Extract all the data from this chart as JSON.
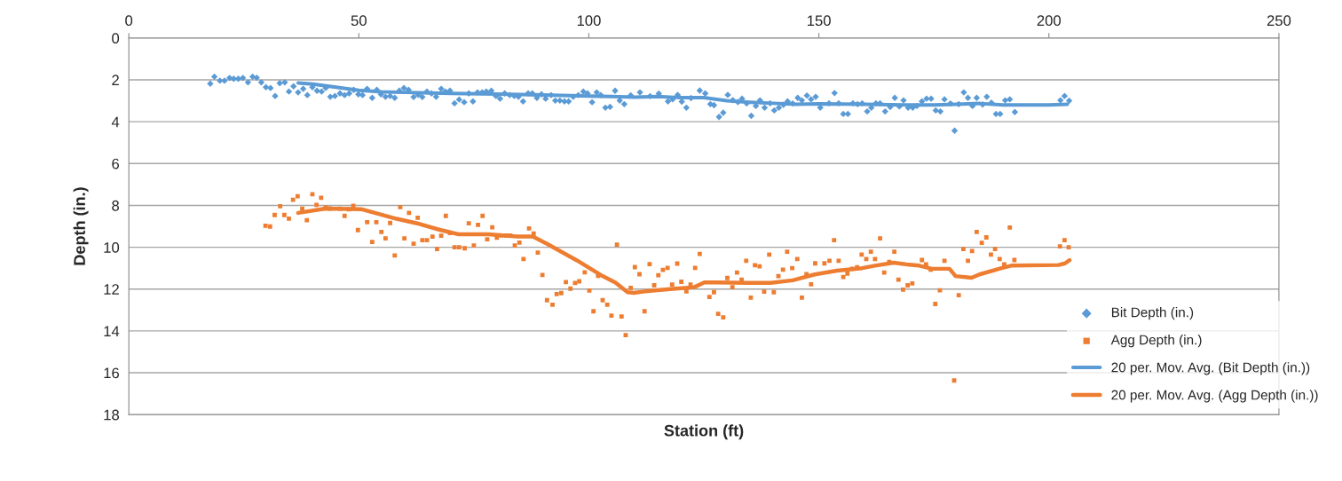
{
  "chart_data": {
    "type": "scatter",
    "xlabel": "Station (ft)",
    "ylabel": "Depth (in.)",
    "xlim": [
      0,
      250
    ],
    "xticks": [
      0,
      50,
      100,
      150,
      200,
      250
    ],
    "ylim": [
      18,
      0
    ],
    "yticks": [
      0,
      2,
      4,
      6,
      8,
      10,
      12,
      14,
      16,
      18
    ],
    "grid": "y",
    "legend": "bottom right",
    "series": [
      {
        "name": "Bit Depth (in.)",
        "color": "#5b9bd5",
        "marker": "diamond",
        "x": [
          17.7,
          18.6,
          19.8,
          20.8,
          21.9,
          22.8,
          23.8,
          24.8,
          25.9,
          26.9,
          27.8,
          28.8,
          29.8,
          30.8,
          31.8,
          32.8,
          33.9,
          34.8,
          35.8,
          36.8,
          37.9,
          38.8,
          39.9,
          40.9,
          41.9,
          42.8,
          43.8,
          44.8,
          45.9,
          46.9,
          47.9,
          48.9,
          49.9,
          50.8,
          51.8,
          52.9,
          53.9,
          54.8,
          55.8,
          56.8,
          57.8,
          58.8,
          59.8,
          60.8,
          61.9,
          62.9,
          63.8,
          64.8,
          65.8,
          66.8,
          67.9,
          68.8,
          69.8,
          70.8,
          71.8,
          72.9,
          73.9,
          74.8,
          75.8,
          76.8,
          77.7,
          78.8,
          79.8,
          80.7,
          81.7,
          82.8,
          83.8,
          84.7,
          85.7,
          86.8,
          87.7,
          88.7,
          89.7,
          90.6,
          91.8,
          92.7,
          93.7,
          94.7,
          95.6,
          96.6,
          97.7,
          98.8,
          99.7,
          100.7,
          101.7,
          102.6,
          103.6,
          104.6,
          105.7,
          106.7,
          107.7,
          109.1,
          111.1,
          113.3,
          115.2,
          117.2,
          118.2,
          119.3,
          120.2,
          121.2,
          122.2,
          124.1,
          125.3,
          126.4,
          127.2,
          128.3,
          129.2,
          130.2,
          131.3,
          132.4,
          133.3,
          134.3,
          135.3,
          136.3,
          137.2,
          138.2,
          139.4,
          140.3,
          141.3,
          142.3,
          143.2,
          144.3,
          145.4,
          146.3,
          147.4,
          148.3,
          149.3,
          150.3,
          152.2,
          153.4,
          154.3,
          155.3,
          156.3,
          157.4,
          158.4,
          159.4,
          160.5,
          161.4,
          162.4,
          163.3,
          164.4,
          165.5,
          166.5,
          167.5,
          168.4,
          169.4,
          170.4,
          171.3,
          172.4,
          173.4,
          174.4,
          175.4,
          176.4,
          177.3,
          178.6,
          179.5,
          180.4,
          181.5,
          182.4,
          183.4,
          184.3,
          185.6,
          186.5,
          187.5,
          188.5,
          189.4,
          190.5,
          191.5,
          192.6,
          202.5,
          203.4,
          204.4
        ],
        "values": [
          2.18,
          1.85,
          2.04,
          2.04,
          1.91,
          1.95,
          1.95,
          1.91,
          2.12,
          1.85,
          1.9,
          2.12,
          2.35,
          2.39,
          2.77,
          2.16,
          2.12,
          2.56,
          2.31,
          2.6,
          2.43,
          2.73,
          2.35,
          2.52,
          2.56,
          2.39,
          2.81,
          2.77,
          2.65,
          2.73,
          2.65,
          2.48,
          2.69,
          2.73,
          2.43,
          2.86,
          2.48,
          2.69,
          2.81,
          2.77,
          2.86,
          2.52,
          2.39,
          2.48,
          2.82,
          2.71,
          2.82,
          2.56,
          2.65,
          2.81,
          2.43,
          2.56,
          2.52,
          3.12,
          2.94,
          3.07,
          2.65,
          3.03,
          2.6,
          2.6,
          2.56,
          2.52,
          2.77,
          2.9,
          2.65,
          2.73,
          2.77,
          2.81,
          3.03,
          2.65,
          2.65,
          2.86,
          2.69,
          2.9,
          2.73,
          2.99,
          2.99,
          3.03,
          3.03,
          2.81,
          2.73,
          2.56,
          2.65,
          3.07,
          2.6,
          2.73,
          3.33,
          3.29,
          2.52,
          2.99,
          3.16,
          2.74,
          2.6,
          2.78,
          2.66,
          3.03,
          2.93,
          2.72,
          3.04,
          3.33,
          2.87,
          2.51,
          2.65,
          3.16,
          3.21,
          3.77,
          3.57,
          2.72,
          2.97,
          3.06,
          2.9,
          3.13,
          3.72,
          3.25,
          2.98,
          3.33,
          3.12,
          3.46,
          3.33,
          3.19,
          3.03,
          3.13,
          2.86,
          2.98,
          2.75,
          2.93,
          2.81,
          3.33,
          3.12,
          2.63,
          3.12,
          3.63,
          3.63,
          3.12,
          3.16,
          3.12,
          3.51,
          3.33,
          3.12,
          3.12,
          3.51,
          3.3,
          2.86,
          3.27,
          2.98,
          3.33,
          3.33,
          3.25,
          3.03,
          2.9,
          2.9,
          3.46,
          3.51,
          2.93,
          3.13,
          4.43,
          3.16,
          2.6,
          2.86,
          3.25,
          2.86,
          3.18,
          2.81,
          3.09,
          3.63,
          3.63,
          2.98,
          2.93,
          3.54,
          2.98,
          2.77,
          3.0
        ]
      },
      {
        "name": "Agg Depth (in.)",
        "color": "#ed7d31",
        "marker": "square",
        "x": [
          29.7,
          30.7,
          31.7,
          32.9,
          33.8,
          34.8,
          35.7,
          36.7,
          37.7,
          38.7,
          39.9,
          40.8,
          41.8,
          42.8,
          43.7,
          45.9,
          46.9,
          47.8,
          48.8,
          49.8,
          51.8,
          52.9,
          53.8,
          54.9,
          55.8,
          56.8,
          57.8,
          59,
          59.9,
          60.9,
          61.9,
          62.8,
          63.8,
          64.8,
          66,
          67,
          67.9,
          68.9,
          69.8,
          70.8,
          71.8,
          73,
          73.9,
          75,
          75.9,
          76.9,
          77.9,
          79,
          80,
          81,
          82,
          82.9,
          83.9,
          84.9,
          85.8,
          87,
          88,
          88.9,
          89.9,
          90.9,
          92.1,
          93,
          94,
          95,
          96,
          97,
          97.9,
          99.1,
          100.1,
          101,
          102,
          103,
          104,
          104.9,
          106.1,
          107.1,
          108,
          109.1,
          110,
          111,
          112.1,
          113.2,
          114.2,
          115.1,
          116.1,
          117.1,
          118.1,
          119.2,
          120.1,
          121.2,
          122.1,
          123.1,
          124.1,
          126.2,
          127.2,
          128.1,
          129.2,
          130.1,
          131.2,
          132.2,
          133.2,
          134.2,
          135.2,
          136.1,
          137.1,
          138.1,
          139.2,
          140.2,
          141.2,
          142.2,
          143.1,
          144.2,
          145.3,
          146.3,
          147.3,
          148.3,
          149.2,
          151.2,
          152.3,
          153.3,
          154.3,
          155.3,
          156.2,
          157.2,
          158.3,
          159.3,
          160.3,
          161.3,
          162.2,
          163.3,
          164.2,
          165.3,
          166.4,
          167.3,
          168.3,
          169.3,
          170.3,
          172.4,
          173.3,
          174.3,
          175.3,
          176.3,
          177.3,
          179.4,
          180.4,
          181.4,
          182.4,
          183.3,
          184.3,
          185.4,
          186.4,
          187.4,
          188.3,
          189.3,
          190.3,
          191.5,
          192.5,
          202.4,
          203.4,
          204.3
        ],
        "values": [
          8.97,
          9.01,
          8.46,
          8.04,
          8.46,
          8.63,
          7.73,
          7.56,
          8.16,
          8.71,
          7.47,
          7.98,
          7.64,
          8.11,
          8.15,
          8.16,
          8.5,
          8.19,
          8.02,
          9.18,
          8.8,
          9.75,
          8.8,
          9.27,
          9.58,
          8.84,
          10.39,
          8.08,
          9.58,
          8.36,
          9.83,
          8.59,
          9.66,
          9.66,
          9.49,
          10.09,
          9.45,
          8.5,
          9.32,
          10.0,
          10.0,
          10.05,
          8.86,
          9.92,
          8.93,
          8.5,
          9.62,
          9.05,
          9.54,
          9.44,
          9.44,
          9.44,
          9.92,
          9.78,
          10.56,
          9.1,
          9.35,
          10.26,
          11.33,
          12.53,
          12.75,
          12.24,
          12.19,
          11.67,
          11.98,
          11.71,
          11.63,
          11.2,
          12.07,
          13.06,
          11.37,
          12.53,
          12.75,
          13.27,
          9.88,
          13.31,
          14.2,
          11.94,
          10.95,
          11.29,
          13.06,
          10.81,
          11.82,
          11.34,
          11.08,
          10.99,
          11.78,
          10.78,
          11.65,
          12.11,
          11.78,
          10.99,
          10.32,
          12.38,
          12.15,
          13.18,
          13.35,
          11.47,
          11.91,
          11.21,
          11.55,
          10.65,
          12.41,
          10.86,
          10.91,
          12.12,
          10.35,
          12.15,
          11.38,
          11.07,
          10.21,
          11.0,
          10.56,
          12.41,
          11.29,
          11.77,
          10.77,
          10.77,
          10.65,
          9.66,
          10.65,
          11.42,
          11.26,
          11.03,
          10.96,
          10.35,
          10.56,
          10.21,
          10.56,
          9.58,
          11.21,
          10.7,
          10.21,
          11.55,
          12.03,
          11.82,
          11.73,
          10.61,
          10.82,
          11.07,
          12.71,
          12.06,
          10.65,
          16.37,
          12.29,
          10.09,
          10.65,
          10.18,
          9.27,
          9.79,
          9.53,
          10.35,
          10.09,
          10.56,
          10.82,
          9.06,
          10.61,
          9.96,
          9.66,
          10.0
        ]
      },
      {
        "type": "line",
        "name": "20 per. Mov. Avg. (Bit Depth (in.))",
        "color": "#5b9bd5",
        "marker": "none",
        "line_style": "solid",
        "x": [
          36.8,
          40,
          45,
          50,
          55,
          60,
          70,
          80,
          90,
          100,
          105,
          110,
          115,
          120,
          125,
          130,
          135,
          140,
          145,
          150,
          160,
          170,
          175,
          180,
          185,
          190,
          200,
          204
        ],
        "values": [
          2.15,
          2.2,
          2.35,
          2.5,
          2.57,
          2.6,
          2.65,
          2.68,
          2.72,
          2.78,
          2.8,
          2.83,
          2.8,
          2.85,
          2.85,
          3.0,
          3.07,
          3.12,
          3.17,
          3.15,
          3.17,
          3.2,
          3.2,
          3.17,
          3.13,
          3.2,
          3.2,
          3.17
        ]
      },
      {
        "type": "line",
        "name": "20 per. Mov. Avg. (Agg Depth (in.))",
        "color": "#ed7d31",
        "marker": "none",
        "line_style": "solid",
        "x": [
          36.8,
          42.8,
          50.5,
          58.2,
          62.7,
          67.8,
          71.7,
          78.1,
          84.5,
          87.8,
          91,
          97.4,
          102.6,
          105.8,
          108.4,
          109.8,
          112.2,
          116,
          122.9,
          125.1,
          127.7,
          134.6,
          139.5,
          144.3,
          149.1,
          153.9,
          159.4,
          162.2,
          166.3,
          169.1,
          171.8,
          174.6,
          178.4,
          179.7,
          183.2,
          184.9,
          189.7,
          191.8,
          202.1,
          203.5,
          204.5
        ],
        "values": [
          8.36,
          8.15,
          8.18,
          8.64,
          8.86,
          9.18,
          9.38,
          9.38,
          9.49,
          9.49,
          9.85,
          10.63,
          11.33,
          11.69,
          12.15,
          12.18,
          12.11,
          12.03,
          11.91,
          11.68,
          11.68,
          11.7,
          11.7,
          11.58,
          11.3,
          11.12,
          11.0,
          10.88,
          10.74,
          10.82,
          10.88,
          11.03,
          11.03,
          11.38,
          11.46,
          11.3,
          11.0,
          10.88,
          10.85,
          10.77,
          10.62
        ]
      }
    ]
  }
}
